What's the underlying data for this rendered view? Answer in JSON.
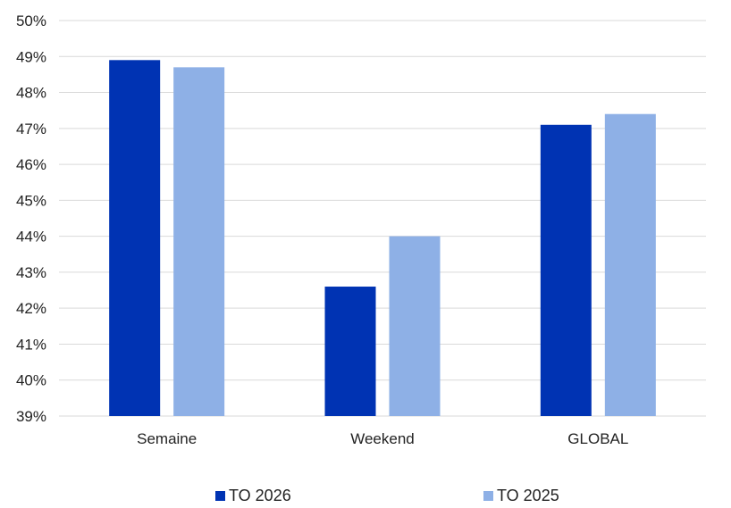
{
  "chart_data": {
    "type": "bar",
    "categories": [
      "Semaine",
      "Weekend",
      "GLOBAL"
    ],
    "series": [
      {
        "name": "TO 2026",
        "color": "#0033b3",
        "values": [
          48.9,
          42.6,
          47.1
        ]
      },
      {
        "name": "TO 2025",
        "color": "#8eb0e6",
        "values": [
          48.7,
          44.0,
          47.4
        ]
      }
    ],
    "ylim": [
      39,
      50
    ],
    "yticks": [
      39,
      40,
      41,
      42,
      43,
      44,
      45,
      46,
      47,
      48,
      49,
      50
    ],
    "y_tick_suffix": "%",
    "grid": true,
    "legend_position": "bottom"
  }
}
